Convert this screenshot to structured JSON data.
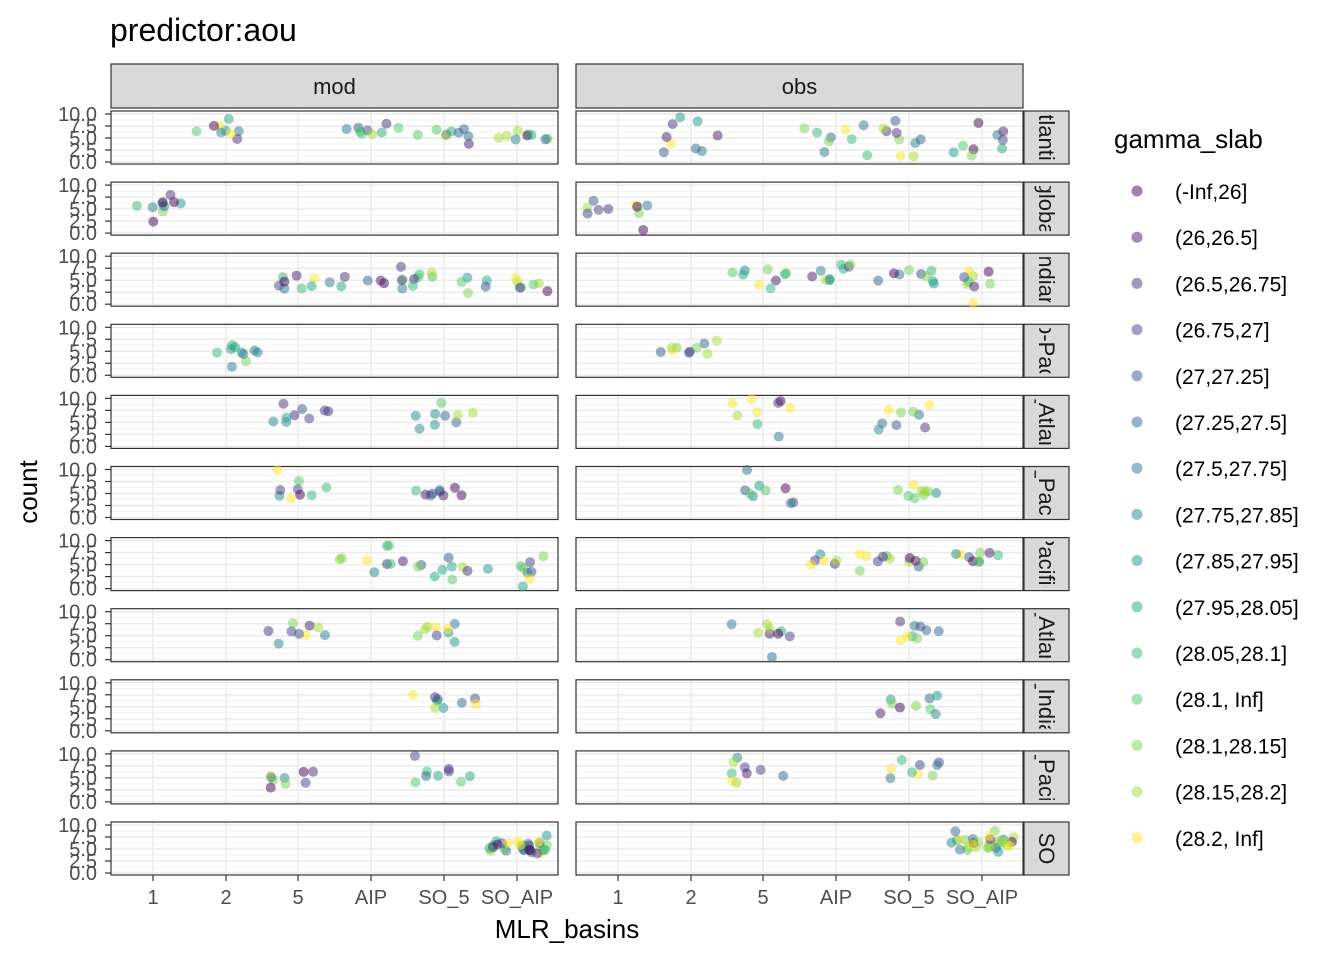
{
  "chart_data": {
    "type": "scatter",
    "title": "predictor:aou",
    "xlabel": "MLR_basins",
    "ylabel": "count",
    "x_categories": [
      "1",
      "2",
      "5",
      "AIP",
      "SO_5",
      "SO_AIP"
    ],
    "y_ticks": [
      "0.0",
      "2.5",
      "5.0",
      "7.5",
      "10.0"
    ],
    "ylim": [
      0,
      10
    ],
    "grid": true,
    "columns": [
      "mod",
      "obs"
    ],
    "rows": [
      "Atlantic",
      "global",
      "Indian",
      "Indo-Pacific",
      "N_Atlantic",
      "N_Pacific",
      "Pacific",
      "S_Atlantic",
      "S_Indian",
      "S_Pacific",
      "SO"
    ],
    "row_labels_visible": [
      "tlanti",
      "globa",
      "ndiar",
      "o-Pac",
      "_Atlan",
      "_Paci",
      "Pacific",
      "_Atlan",
      "_India",
      "_Pacif",
      "SO"
    ],
    "legend": {
      "title": "gamma_slab",
      "position": "right",
      "entries": [
        "(-Inf,26]",
        "(26,26.5]",
        "(26.5,26.75]",
        "(26.75,27]",
        "(27,27.25]",
        "(27.25,27.5]",
        "(27.5,27.75]",
        "(27.75,27.85]",
        "(27.85,27.95]",
        "(27.95,28.05]",
        "(28.05,28.1]",
        "(28.1, Inf]",
        "(28.1,28.15]",
        "(28.15,28.2]",
        "(28.2, Inf]"
      ],
      "colors": [
        "#440154",
        "#481A6C",
        "#472F7D",
        "#414487",
        "#39568C",
        "#31688E",
        "#2A788E",
        "#23888E",
        "#1F988B",
        "#22A884",
        "#35B779",
        "#54C568",
        "#7AD151",
        "#A5DB36",
        "#FDE725"
      ]
    },
    "point_alpha": 0.5,
    "groups": [
      {
        "row": 0,
        "col": 0,
        "x": "2",
        "n": 9,
        "mean": 6.2,
        "sd": 1.0
      },
      {
        "row": 0,
        "col": 0,
        "x": "AIP",
        "n": 9,
        "mean": 6.5,
        "sd": 1.2
      },
      {
        "row": 0,
        "col": 0,
        "x": "SO_5",
        "n": 9,
        "mean": 5.8,
        "sd": 1.1
      },
      {
        "row": 0,
        "col": 0,
        "x": "SO_AIP",
        "n": 9,
        "mean": 5.5,
        "sd": 0.9
      },
      {
        "row": 0,
        "col": 1,
        "x": "2",
        "n": 9,
        "mean": 5.5,
        "sd": 2.2
      },
      {
        "row": 0,
        "col": 1,
        "x": "AIP",
        "n": 9,
        "mean": 5.6,
        "sd": 2.2
      },
      {
        "row": 0,
        "col": 1,
        "x": "SO_5",
        "n": 9,
        "mean": 5.2,
        "sd": 2.0
      },
      {
        "row": 0,
        "col": 1,
        "x": "SO_AIP",
        "n": 9,
        "mean": 5.0,
        "sd": 2.0
      },
      {
        "row": 1,
        "col": 0,
        "x": "1",
        "n": 10,
        "mean": 6.0,
        "sd": 1.4
      },
      {
        "row": 1,
        "col": 1,
        "x": "1",
        "n": 10,
        "mean": 5.5,
        "sd": 1.2
      },
      {
        "row": 2,
        "col": 0,
        "x": "5",
        "n": 9,
        "mean": 4.8,
        "sd": 1.3
      },
      {
        "row": 2,
        "col": 0,
        "x": "AIP",
        "n": 9,
        "mean": 5.0,
        "sd": 1.2
      },
      {
        "row": 2,
        "col": 0,
        "x": "SO_5",
        "n": 9,
        "mean": 4.5,
        "sd": 1.4
      },
      {
        "row": 2,
        "col": 0,
        "x": "SO_AIP",
        "n": 9,
        "mean": 4.2,
        "sd": 1.5
      },
      {
        "row": 2,
        "col": 1,
        "x": "5",
        "n": 9,
        "mean": 5.8,
        "sd": 1.6
      },
      {
        "row": 2,
        "col": 1,
        "x": "AIP",
        "n": 9,
        "mean": 6.0,
        "sd": 1.6
      },
      {
        "row": 2,
        "col": 1,
        "x": "SO_5",
        "n": 9,
        "mean": 6.0,
        "sd": 1.5
      },
      {
        "row": 2,
        "col": 1,
        "x": "SO_AIP",
        "n": 9,
        "mean": 5.8,
        "sd": 1.5
      },
      {
        "row": 3,
        "col": 0,
        "x": "2",
        "n": 10,
        "mean": 5.0,
        "sd": 1.3
      },
      {
        "row": 3,
        "col": 1,
        "x": "2",
        "n": 10,
        "mean": 5.5,
        "sd": 1.3
      },
      {
        "row": 4,
        "col": 0,
        "x": "5",
        "n": 9,
        "mean": 6.0,
        "sd": 1.4
      },
      {
        "row": 4,
        "col": 0,
        "x": "SO_5",
        "n": 9,
        "mean": 6.0,
        "sd": 1.1
      },
      {
        "row": 4,
        "col": 1,
        "x": "5",
        "n": 9,
        "mean": 6.0,
        "sd": 1.8
      },
      {
        "row": 4,
        "col": 1,
        "x": "SO_5",
        "n": 9,
        "mean": 6.4,
        "sd": 1.3
      },
      {
        "row": 5,
        "col": 0,
        "x": "5",
        "n": 9,
        "mean": 6.2,
        "sd": 1.6
      },
      {
        "row": 5,
        "col": 0,
        "x": "SO_5",
        "n": 9,
        "mean": 5.0,
        "sd": 1.2
      },
      {
        "row": 5,
        "col": 1,
        "x": "5",
        "n": 9,
        "mean": 6.0,
        "sd": 1.7
      },
      {
        "row": 5,
        "col": 1,
        "x": "SO_5",
        "n": 9,
        "mean": 5.4,
        "sd": 1.4
      },
      {
        "row": 6,
        "col": 0,
        "x": "AIP",
        "n": 9,
        "mean": 5.6,
        "sd": 1.4
      },
      {
        "row": 6,
        "col": 0,
        "x": "SO_5",
        "n": 9,
        "mean": 4.5,
        "sd": 1.4
      },
      {
        "row": 6,
        "col": 0,
        "x": "SO_AIP",
        "n": 9,
        "mean": 4.8,
        "sd": 1.5
      },
      {
        "row": 6,
        "col": 1,
        "x": "AIP",
        "n": 9,
        "mean": 5.8,
        "sd": 1.0
      },
      {
        "row": 6,
        "col": 1,
        "x": "SO_5",
        "n": 9,
        "mean": 5.8,
        "sd": 1.0
      },
      {
        "row": 6,
        "col": 1,
        "x": "SO_AIP",
        "n": 9,
        "mean": 6.3,
        "sd": 0.8
      },
      {
        "row": 7,
        "col": 0,
        "x": "5",
        "n": 9,
        "mean": 5.8,
        "sd": 1.5
      },
      {
        "row": 7,
        "col": 0,
        "x": "SO_5",
        "n": 9,
        "mean": 5.6,
        "sd": 1.0
      },
      {
        "row": 7,
        "col": 1,
        "x": "5",
        "n": 9,
        "mean": 6.0,
        "sd": 1.5
      },
      {
        "row": 7,
        "col": 1,
        "x": "SO_5",
        "n": 9,
        "mean": 6.0,
        "sd": 1.5
      },
      {
        "row": 8,
        "col": 0,
        "x": "SO_5",
        "n": 9,
        "mean": 6.0,
        "sd": 1.1
      },
      {
        "row": 8,
        "col": 1,
        "x": "SO_5",
        "n": 9,
        "mean": 5.8,
        "sd": 1.1
      },
      {
        "row": 9,
        "col": 0,
        "x": "5",
        "n": 9,
        "mean": 5.0,
        "sd": 1.1
      },
      {
        "row": 9,
        "col": 0,
        "x": "SO_5",
        "n": 9,
        "mean": 5.4,
        "sd": 1.2
      },
      {
        "row": 9,
        "col": 1,
        "x": "5",
        "n": 9,
        "mean": 6.5,
        "sd": 1.5
      },
      {
        "row": 9,
        "col": 1,
        "x": "SO_5",
        "n": 9,
        "mean": 6.5,
        "sd": 1.5
      },
      {
        "row": 10,
        "col": 0,
        "x": "SO_AIP",
        "n": 30,
        "mean": 5.5,
        "sd": 1.3
      },
      {
        "row": 10,
        "col": 1,
        "x": "SO_AIP",
        "n": 30,
        "mean": 6.3,
        "sd": 1.4
      }
    ]
  }
}
